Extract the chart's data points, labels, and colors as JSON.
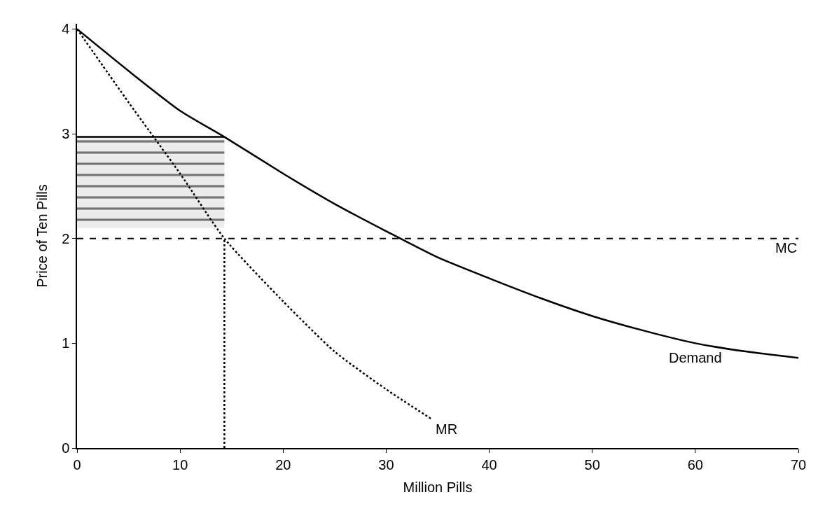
{
  "chart_data": {
    "type": "line",
    "xlabel": "Million Pills",
    "ylabel": "Price of Ten Pills",
    "xlim": [
      0,
      70
    ],
    "ylim": [
      0,
      4.05
    ],
    "xticks": [
      0,
      10,
      20,
      30,
      40,
      50,
      60,
      70
    ],
    "yticks": [
      0,
      1,
      2,
      3,
      4
    ],
    "series": [
      {
        "color": "#000000",
        "x": [
          0,
          14.3
        ],
        "values": [
          2.97,
          2.97
        ],
        "lower": [
          2.1,
          2.1
        ],
        "upper": [
          2.97,
          2.97
        ]
      },
      {
        "name": "Demand",
        "color": "#000000",
        "line_style": "solid",
        "x": [
          0,
          5,
          10,
          14.3,
          20,
          25,
          30,
          35,
          40,
          45,
          50,
          55,
          60,
          65,
          70
        ],
        "values": [
          4,
          3.6,
          3.22,
          2.97,
          2.62,
          2.33,
          2.07,
          1.82,
          1.62,
          1.43,
          1.26,
          1.12,
          1.0,
          0.92,
          0.86
        ]
      },
      {
        "name": "MR",
        "color": "#000000",
        "line_style": "dotted",
        "x": [
          0,
          5,
          10,
          14.3,
          20,
          25,
          30,
          34.5
        ],
        "values": [
          4,
          3.3,
          2.62,
          2.0,
          1.4,
          0.92,
          0.56,
          0.27
        ]
      },
      {
        "color": "#000000",
        "line_style": "dotted",
        "x": [
          14.3,
          14.3
        ],
        "values": [
          0,
          2
        ]
      }
    ],
    "ref_lines": [
      {
        "axis": "y",
        "value": 2,
        "label": "MC",
        "color": "#000000",
        "line_style": "dashed"
      }
    ]
  }
}
